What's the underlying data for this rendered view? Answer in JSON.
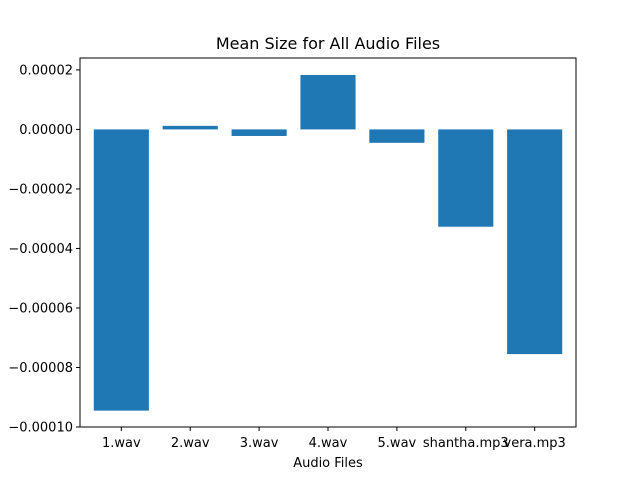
{
  "chart_data": {
    "type": "bar",
    "title": "Mean Size for All Audio Files",
    "xlabel": "Audio Files",
    "ylabel": "",
    "categories": [
      "1.wav",
      "2.wav",
      "3.wav",
      "4.wav",
      "5.wav",
      "shantha.mp3",
      "vera.mp3"
    ],
    "values": [
      -9.45e-05,
      1.2e-06,
      -2.2e-06,
      1.83e-05,
      -4.5e-06,
      -3.27e-05,
      -7.55e-05
    ],
    "ylim": [
      -0.0001,
      2.4e-05
    ],
    "yticks": [
      -0.0001,
      -8e-05,
      -6e-05,
      -4e-05,
      -2e-05,
      0.0,
      2e-05
    ],
    "ytick_labels": [
      "−0.00010",
      "−0.00008",
      "−0.00006",
      "−0.00004",
      "−0.00002",
      "0.00000",
      "0.00002"
    ],
    "bar_color": "#1f77b4",
    "grid": false,
    "legend": "none"
  }
}
